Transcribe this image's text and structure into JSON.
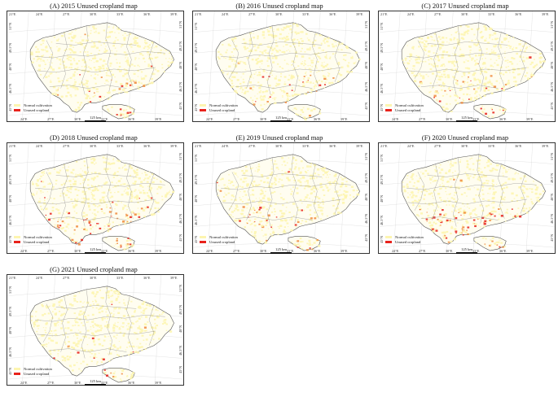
{
  "panels": [
    {
      "title": "(A) 2015 Unused cropland map",
      "unused_intensity": 0.45
    },
    {
      "title": "(B) 2016 Unused cropland map",
      "unused_intensity": 0.35
    },
    {
      "title": "(C) 2017 Unused cropland map",
      "unused_intensity": 0.55
    },
    {
      "title": "(D) 2018 Unused cropland map",
      "unused_intensity": 1.0
    },
    {
      "title": "(E) 2019 Unused cropland map",
      "unused_intensity": 0.6
    },
    {
      "title": "(F) 2020 Unused cropland map",
      "unused_intensity": 0.85
    },
    {
      "title": "(G) 2021 Unused cropland map",
      "unused_intensity": 0.2
    }
  ],
  "longitude_ticks": [
    "24°E",
    "27°E",
    "30°E",
    "33°E",
    "36°E",
    "39°E"
  ],
  "top_longitude_ticks": [
    "21°E",
    "24°E",
    "27°E",
    "30°E",
    "33°E",
    "36°E",
    "39°E"
  ],
  "left_latitude_ticks": [
    "51°N",
    "49.5°N",
    "48°N",
    "46.5°N",
    "45°N"
  ],
  "right_latitude_ticks": [
    "51°N",
    "49.5°N",
    "48°N",
    "46.5°N",
    "45°N"
  ],
  "legend": {
    "normal_label": "Normal cultivation",
    "unused_label": "Unused cropland",
    "normal_color": "#fdf5b0",
    "unused_color": "#e8221b"
  },
  "scale_label": "125 km",
  "colors": {
    "border": "#888888",
    "frame": "#333333",
    "water": "#ffffff"
  }
}
